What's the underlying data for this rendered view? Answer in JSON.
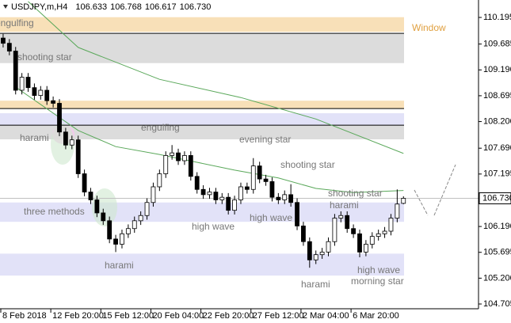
{
  "chart_data": {
    "type": "candlestick",
    "symbol": "USDJPY,m,H4",
    "ohlc": [
      106.633,
      106.768,
      106.617,
      {
        "value": 106.73,
        "label": "106.730"
      }
    ],
    "ylim": [
      104.614,
      110.529
    ],
    "yticks": [
      110.195,
      109.685,
      {
        "value": 109.19,
        "label": "109.190"
      },
      108.695,
      {
        "value": 108.2,
        "label": "108.200"
      },
      {
        "value": 107.69,
        "label": "107.690"
      },
      107.195,
      {
        "value": 106.19,
        "label": "106.190"
      },
      105.695,
      {
        "value": 105.2,
        "label": "105.200"
      },
      104.705
    ],
    "price": {
      "value": 106.73,
      "label": "106.730"
    },
    "xlim": [
      -0.5,
      76
    ],
    "xticks": [
      {
        "value": 0,
        "label": "8 Feb 2018"
      },
      {
        "value": 8,
        "label": "12 Feb 20:00"
      },
      {
        "value": 16,
        "label": "15 Feb 12:00"
      },
      {
        "value": 24,
        "label": "20 Feb 04:00"
      },
      {
        "value": 32,
        "label": "22 Feb 20:00"
      },
      {
        "value": 40,
        "label": "27 Feb 12:00"
      },
      {
        "value": 48,
        "label": "2 Mar 04:00"
      },
      {
        "value": 56,
        "label": "6 Mar 20:00"
      }
    ],
    "candles": [
      [
        109.8,
        109.88,
        109.62,
        109.7
      ],
      [
        109.7,
        109.78,
        109.47,
        109.55
      ],
      [
        109.55,
        109.63,
        108.72,
        108.8
      ],
      [
        108.8,
        109.13,
        108.72,
        109.05
      ],
      [
        109.05,
        109.13,
        108.77,
        108.85
      ],
      [
        108.85,
        108.93,
        108.62,
        108.7
      ],
      [
        108.7,
        108.88,
        108.62,
        108.8
      ],
      [
        108.8,
        108.88,
        108.52,
        108.6
      ],
      [
        108.6,
        108.68,
        108.47,
        108.55
      ],
      [
        108.55,
        108.63,
        107.92,
        108.0
      ],
      [
        108.0,
        108.08,
        107.67,
        107.75
      ],
      [
        107.75,
        107.93,
        107.67,
        107.85
      ],
      [
        107.85,
        107.93,
        107.12,
        107.2
      ],
      [
        107.2,
        107.28,
        106.77,
        106.85
      ],
      [
        106.85,
        106.93,
        106.62,
        106.7
      ],
      [
        106.7,
        106.78,
        106.37,
        106.45
      ],
      [
        106.45,
        106.53,
        106.22,
        106.3
      ],
      [
        106.3,
        106.38,
        105.87,
        105.95
      ],
      [
        105.95,
        106.03,
        105.7,
        105.85
      ],
      [
        105.85,
        106.13,
        105.77,
        106.05
      ],
      [
        106.05,
        106.23,
        105.97,
        106.15
      ],
      [
        106.15,
        106.38,
        106.07,
        106.3
      ],
      [
        106.3,
        106.48,
        106.22,
        106.4
      ],
      [
        106.4,
        106.73,
        106.32,
        106.65
      ],
      [
        106.65,
        107.03,
        106.57,
        106.95
      ],
      [
        106.95,
        107.28,
        106.87,
        107.2
      ],
      [
        107.2,
        107.63,
        107.12,
        107.55
      ],
      [
        107.55,
        107.75,
        107.47,
        107.6
      ],
      [
        107.6,
        107.68,
        107.37,
        107.45
      ],
      [
        107.45,
        107.63,
        107.37,
        107.55
      ],
      [
        107.55,
        107.63,
        107.07,
        107.15
      ],
      [
        107.15,
        107.23,
        106.82,
        106.9
      ],
      [
        106.9,
        106.98,
        106.72,
        106.8
      ],
      [
        106.8,
        106.93,
        106.72,
        106.85
      ],
      [
        106.85,
        106.93,
        106.62,
        106.7
      ],
      [
        106.7,
        106.83,
        106.62,
        106.75
      ],
      [
        106.75,
        106.83,
        106.42,
        106.5
      ],
      [
        106.5,
        106.78,
        106.42,
        106.7
      ],
      [
        106.7,
        107.03,
        106.62,
        106.95
      ],
      [
        106.95,
        107.03,
        106.82,
        106.9
      ],
      [
        106.9,
        107.5,
        106.82,
        107.35
      ],
      [
        107.35,
        107.43,
        107.02,
        107.1
      ],
      [
        107.1,
        107.18,
        106.97,
        107.05
      ],
      [
        107.05,
        107.13,
        106.67,
        106.75
      ],
      [
        106.75,
        106.83,
        106.62,
        106.7
      ],
      [
        106.7,
        106.88,
        106.62,
        106.8
      ],
      [
        106.8,
        107.0,
        106.57,
        106.65
      ],
      [
        106.65,
        106.73,
        106.12,
        106.2
      ],
      [
        106.2,
        106.28,
        105.82,
        105.9
      ],
      [
        105.9,
        105.98,
        105.4,
        105.55
      ],
      [
        105.55,
        105.73,
        105.47,
        105.65
      ],
      [
        105.65,
        105.78,
        105.57,
        105.7
      ],
      [
        105.7,
        105.98,
        105.62,
        105.9
      ],
      [
        105.9,
        106.43,
        105.82,
        106.35
      ],
      [
        106.35,
        106.48,
        106.27,
        106.4
      ],
      [
        106.4,
        106.48,
        106.07,
        106.15
      ],
      [
        106.15,
        106.23,
        105.97,
        106.05
      ],
      [
        106.05,
        106.13,
        105.6,
        105.7
      ],
      [
        105.7,
        105.93,
        105.62,
        105.85
      ],
      [
        105.85,
        106.08,
        105.77,
        106.0
      ],
      [
        106.0,
        106.13,
        105.92,
        106.05
      ],
      [
        106.05,
        106.18,
        105.97,
        106.1
      ],
      [
        106.1,
        106.43,
        106.02,
        106.35
      ],
      [
        106.35,
        106.9,
        106.27,
        106.62
      ],
      [
        106.633,
        106.768,
        106.617,
        106.73
      ]
    ],
    "ma": [
      {
        "color": "#5aa85a",
        "x": [
          4,
          12,
          25,
          38,
          50,
          64
        ],
        "values": [
          110.5,
          109.62,
          109.01,
          108.66,
          108.25,
          107.59
        ]
      },
      {
        "color": "#5aa85a",
        "x": [
          2,
          12,
          18,
          25,
          31,
          37,
          44,
          50,
          56,
          64
        ],
        "values": [
          108.86,
          108.03,
          107.72,
          107.57,
          107.42,
          107.27,
          107.12,
          106.92,
          106.84,
          106.88
        ]
      }
    ],
    "zones": [
      {
        "range": [
          109.92,
          110.2
        ],
        "color": "#f8e0b8"
      },
      {
        "range": [
          109.32,
          109.88
        ],
        "color": "#dcdcdc"
      },
      {
        "range": [
          108.45,
          108.6
        ],
        "color": "#f8e0b8"
      },
      {
        "range": [
          108.13,
          108.36
        ],
        "color": "#e2e2f8"
      },
      {
        "range": [
          107.86,
          108.13
        ],
        "color": "#dcdcdc"
      },
      {
        "range": [
          106.28,
          106.65
        ],
        "color": "#e2e2f8"
      },
      {
        "range": [
          105.25,
          105.67
        ],
        "color": "#e2e2f8"
      }
    ],
    "levels": [
      109.89,
      108.45,
      108.13
    ],
    "annotations": [
      "engulfing",
      "Window",
      "shooting star",
      "harami",
      "engulfing",
      "evening star",
      "shooting star",
      "shooting star",
      "harami",
      "three methods",
      "high wave",
      "high wave",
      "harami",
      "harami",
      "high wave",
      "morning star"
    ]
  }
}
